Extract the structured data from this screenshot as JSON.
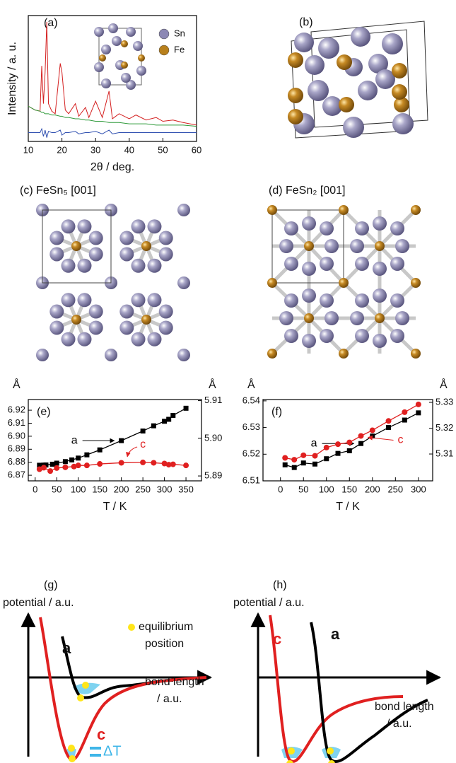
{
  "chart_data": [
    {
      "type": "line",
      "label": "(a)",
      "xlabel": "2θ / deg.",
      "ylabel": "Intensity / a. u.",
      "xlim": [
        10,
        60
      ],
      "xticks": [
        10,
        20,
        30,
        40,
        50,
        60
      ],
      "ylim": [
        0,
        100
      ],
      "x": [
        10,
        12,
        13.5,
        14,
        14.5,
        15,
        15.5,
        16,
        17,
        18,
        19.5,
        20,
        21,
        22,
        24,
        25,
        27,
        28,
        30,
        32,
        34,
        35,
        37,
        40,
        42,
        45,
        48,
        50,
        53,
        56,
        60
      ],
      "series": [
        {
          "color": "#d42020",
          "values": [
            28,
            25,
            24,
            60,
            30,
            55,
            95,
            30,
            24,
            22,
            62,
            55,
            25,
            22,
            30,
            20,
            27,
            19,
            32,
            19,
            40,
            18,
            22,
            18,
            21,
            17,
            19,
            16,
            17,
            15,
            13
          ]
        },
        {
          "color": "#2e9a3a",
          "values": [
            28,
            25,
            24,
            23,
            23,
            22,
            22,
            22,
            21,
            21,
            20,
            20,
            19,
            19,
            18,
            18,
            17,
            17,
            16,
            16,
            15,
            15,
            15,
            14,
            14,
            14,
            13,
            13,
            13,
            13,
            12
          ]
        },
        {
          "color": "#3050b0",
          "values": [
            7,
            7,
            7,
            10,
            4,
            9,
            3,
            8,
            7,
            7,
            9,
            5,
            7,
            7,
            8,
            6,
            7,
            7,
            8,
            6,
            9,
            6,
            7,
            7,
            7,
            7,
            7,
            7,
            7,
            7,
            7
          ]
        }
      ],
      "inset_legend": [
        {
          "name": "Sn",
          "color": "#8c88b4"
        },
        {
          "name": "Fe",
          "color": "#b8801c"
        }
      ]
    },
    {
      "type": "line",
      "label": "(e)",
      "xlabel": "T / K",
      "ylabel": "Å",
      "y2label": "Å",
      "xlim": [
        -16,
        386
      ],
      "xticks": [
        0,
        50,
        100,
        150,
        200,
        250,
        300,
        350
      ],
      "ylim": [
        6.8657,
        6.9282
      ],
      "yticks": [
        6.87,
        6.88,
        6.89,
        {
          "value": 6.9,
          "label": "6.90"
        },
        6.91,
        6.92
      ],
      "y2lim": [
        5.8887,
        5.9103
      ],
      "y2ticks": [
        5.89,
        {
          "value": 5.9,
          "label": "5.90"
        },
        5.91
      ],
      "series": [
        {
          "name": "a",
          "color": "#000000",
          "marker": "square",
          "x": [
            10,
            20,
            25,
            40,
            50,
            70,
            85,
            100,
            120,
            150,
            200,
            250,
            275,
            300,
            310,
            320,
            350
          ],
          "values": [
            6.8777,
            6.8778,
            6.8779,
            6.8785,
            6.8793,
            6.8805,
            6.8818,
            6.8832,
            6.8857,
            6.8895,
            6.8966,
            6.904,
            6.908,
            6.9115,
            6.913,
            6.916,
            6.9215
          ]
        },
        {
          "name": "c",
          "color": "#e02020",
          "marker": "circle",
          "axis": "y2",
          "x": [
            10,
            20,
            35,
            50,
            70,
            90,
            100,
            120,
            150,
            200,
            250,
            275,
            300,
            310,
            320,
            350
          ],
          "values": [
            5.8918,
            5.8922,
            5.8913,
            5.8921,
            5.8923,
            5.8925,
            5.8928,
            5.8928,
            5.8932,
            5.8935,
            5.8936,
            5.8935,
            5.8933,
            5.893,
            5.8931,
            5.8928
          ]
        }
      ]
    },
    {
      "type": "line",
      "label": "(f)",
      "xlabel": "T / K",
      "ylabel": "Å",
      "y2label": "Å",
      "xlim": [
        -38,
        331
      ],
      "xticks": [
        0,
        50,
        100,
        150,
        200,
        250,
        300
      ],
      "ylim": [
        6.51,
        6.5405
      ],
      "yticks": [
        6.51,
        6.52,
        6.53,
        6.54
      ],
      "y2lim": [
        5.2996,
        5.3311
      ],
      "y2ticks": [
        5.31,
        5.32,
        5.33
      ],
      "series": [
        {
          "name": "a",
          "color": "#000000",
          "marker": "square",
          "x": [
            10,
            30,
            50,
            75,
            100,
            125,
            150,
            175,
            200,
            235,
            270,
            300
          ],
          "values": [
            6.516,
            6.515,
            6.5167,
            6.5163,
            6.5183,
            6.5203,
            6.5213,
            6.524,
            6.5268,
            6.53,
            6.5328,
            6.5355
          ]
        },
        {
          "name": "c",
          "color": "#e02020",
          "marker": "circle",
          "axis": "y2",
          "x": [
            10,
            30,
            50,
            75,
            100,
            125,
            150,
            175,
            200,
            235,
            270,
            300
          ],
          "values": [
            5.3085,
            5.3078,
            5.3095,
            5.3093,
            5.3125,
            5.3138,
            5.3145,
            5.317,
            5.3192,
            5.3228,
            5.3262,
            5.3292
          ]
        }
      ]
    }
  ],
  "structures": {
    "b": "(b)",
    "c": "(c) FeSn₅ [001]",
    "d": "(d) FeSn₂ [001]"
  },
  "potentials": [
    {
      "label": "(g)",
      "ylabel": "potential / a.u.",
      "curves": [
        "a",
        "c"
      ],
      "xlabel": [
        "bond length",
        "/ a.u."
      ],
      "note": [
        "equilibrium",
        "position"
      ],
      "delta": "ΔT"
    },
    {
      "label": "(h)",
      "ylabel": "potential / a.u.",
      "curves": [
        "c",
        "a"
      ],
      "xlabel": [
        "bond length",
        "/ a.u."
      ]
    }
  ]
}
